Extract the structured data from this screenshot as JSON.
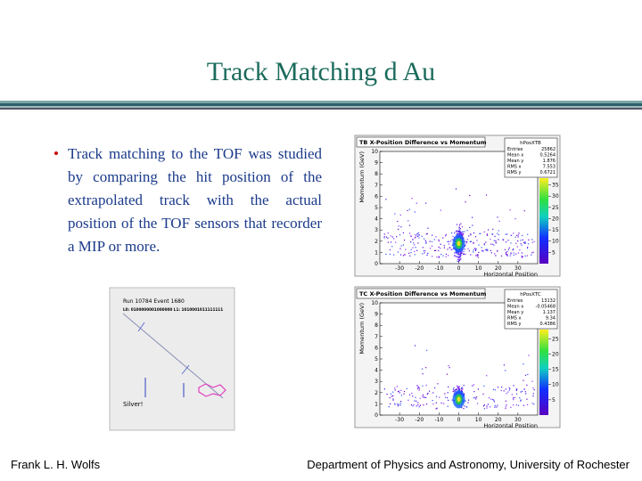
{
  "title": "Track Matching d Au",
  "bullet": "Track matching to the TOF was studied by comparing the hit position of the extrapolated track with the actual position of the TOF sensors that recorder a MIP or more.",
  "event_display": {
    "run": "Run 10784 Event 1680",
    "bits": "L0: 0100000001000000 L1: 1010001011111111",
    "label": "Silver!"
  },
  "plots": [
    {
      "title": "TB X-Position Difference vs Momentum",
      "stats_name": "hPosXTB",
      "stats": [
        [
          "Entries",
          "25862"
        ],
        [
          "Mean x",
          "0.5264"
        ],
        [
          "Mean y",
          "1.876"
        ],
        [
          "RMS x",
          "7.553"
        ],
        [
          "RMS y",
          "0.6721"
        ]
      ],
      "y_label": "Momentum (GeV)",
      "x_label": "Horizontal Position",
      "xlim": [
        -40,
        40
      ],
      "ylim": [
        0,
        10
      ],
      "zlim": [
        0,
        38
      ],
      "xticks": [
        -30,
        -20,
        -10,
        0,
        10,
        20,
        30
      ],
      "yticks": [
        0,
        1,
        2,
        3,
        4,
        5,
        6,
        7,
        8,
        9,
        10
      ],
      "zticks": [
        5,
        10,
        15,
        20,
        25,
        30,
        35
      ]
    },
    {
      "title": "TC X-Position Difference vs Momentum",
      "stats_name": "hPosXTC",
      "stats": [
        [
          "Entries",
          "13132"
        ],
        [
          "Mean x",
          "-0.05468"
        ],
        [
          "Mean y",
          "1.137"
        ],
        [
          "RMS x",
          "9.34"
        ],
        [
          "RMS y",
          "0.4386"
        ]
      ],
      "y_label": "Momentum (GeV)",
      "x_label": "Horizontal Position",
      "xlim": [
        -40,
        40
      ],
      "ylim": [
        0,
        10
      ],
      "zlim": [
        0,
        28
      ],
      "xticks": [
        -30,
        -20,
        -10,
        0,
        10,
        20,
        30
      ],
      "yticks": [
        0,
        1,
        2,
        3,
        4,
        5,
        6,
        7,
        8,
        9,
        10
      ],
      "zticks": [
        5,
        10,
        15,
        20,
        25
      ]
    }
  ],
  "footer": {
    "left": "Frank L. H. Wolfs",
    "right": "Department of Physics and Astronomy, University of Rochester"
  }
}
